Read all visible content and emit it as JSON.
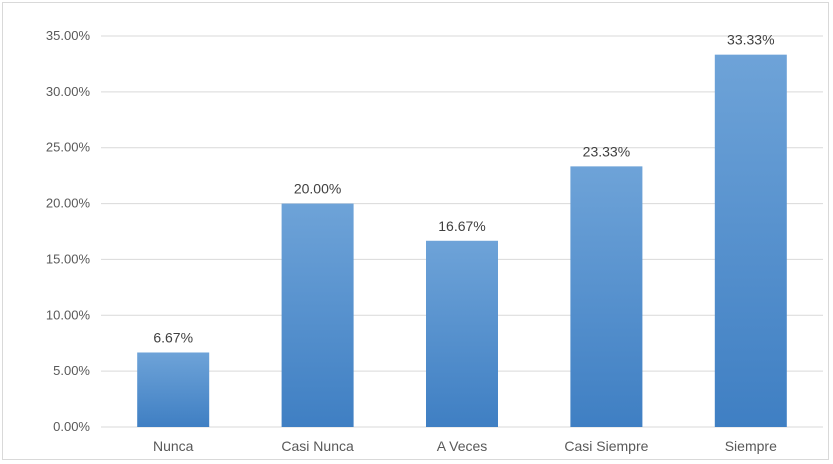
{
  "chart_data": {
    "type": "bar",
    "categories": [
      "Nunca",
      "Casi Nunca",
      "A Veces",
      "Casi Siempre",
      "Siempre"
    ],
    "values": [
      6.67,
      20.0,
      16.67,
      23.33,
      33.33
    ],
    "data_labels": [
      "6.67%",
      "20.00%",
      "16.67%",
      "23.33%",
      "33.33%"
    ],
    "y_ticks": [
      0,
      5,
      10,
      15,
      20,
      25,
      30,
      35
    ],
    "y_tick_labels": [
      "0.00%",
      "5.00%",
      "10.00%",
      "15.00%",
      "20.00%",
      "25.00%",
      "30.00%",
      "35.00%"
    ],
    "ylim": [
      0,
      35
    ],
    "title": "",
    "xlabel": "",
    "ylabel": "",
    "grid": true,
    "legend": "none",
    "colors": {
      "bar_top": "#6ea3d8",
      "bar_bottom": "#3f7fc3",
      "grid": "#d9d9d9"
    }
  }
}
